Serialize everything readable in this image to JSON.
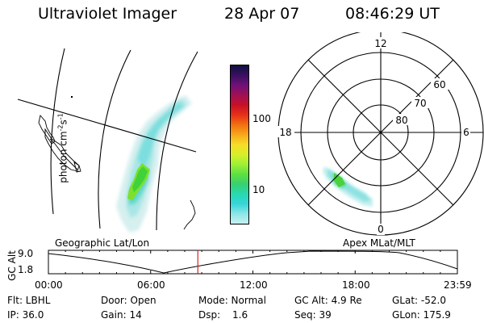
{
  "header": {
    "title": "Ultraviolet Imager",
    "date": "28 Apr 07",
    "time": "08:46:29 UT"
  },
  "colorbar": {
    "label": "photon cm",
    "label_exp1": "-2",
    "label_mid": "s",
    "label_exp2": "-1",
    "tick_100": "100",
    "tick_10": "10",
    "colors": [
      "#101040",
      "#3a1060",
      "#70107a",
      "#a01055",
      "#c81028",
      "#e63018",
      "#f27010",
      "#f7a81a",
      "#f6dc28",
      "#d8ef28",
      "#9ef036",
      "#5fe040",
      "#38d070",
      "#28d8b0",
      "#36d6da",
      "#8ee6e6",
      "#c8f0f0"
    ]
  },
  "polar": {
    "mlt_labels": [
      "12",
      "18",
      "6",
      "0"
    ],
    "lat_labels": [
      "60",
      "70",
      "80"
    ]
  },
  "panels": {
    "geo_label": "Geographic Lat/Lon",
    "apex_label": "Apex MLat/MLT"
  },
  "altplot": {
    "ylabel": "GC Alt",
    "y_ticks": [
      "9.0",
      "1.8"
    ],
    "x_ticks": [
      "00:00",
      "06:00",
      "12:00",
      "18:00",
      "23:59"
    ],
    "current_time_hours": 8.77
  },
  "info": {
    "filter": "Flt: LBHL",
    "door": "Door: Open",
    "mode": "Mode: Normal",
    "gc_alt": "GC Alt: 4.9 Re",
    "glat": "GLat: -52.0",
    "ip": "IP: 36.0",
    "gain": "Gain: 14",
    "dsp_key": "Dsp:",
    "dsp_val": "1.6",
    "seq": "Seq: 39",
    "glon": "GLon: 175.9"
  }
}
